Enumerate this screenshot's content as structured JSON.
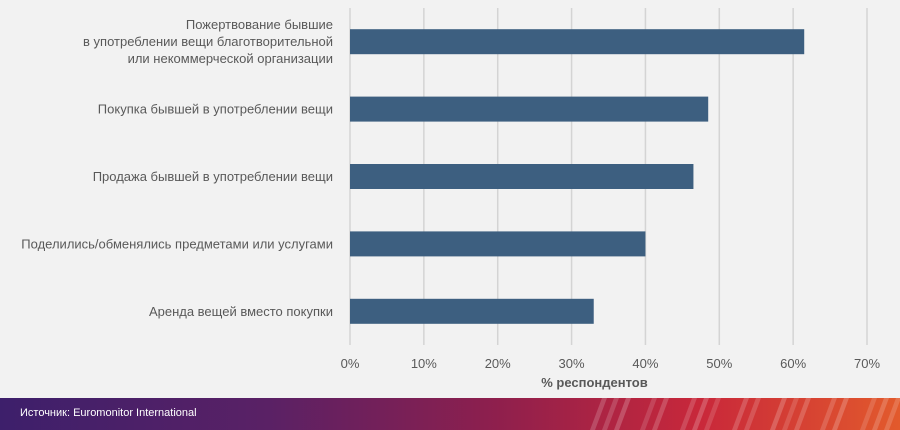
{
  "chart_data": {
    "type": "bar",
    "orientation": "horizontal",
    "categories": [
      [
        "Пожертвование бывшие",
        "в употреблении вещи благотворительной",
        "или некоммерческой организации"
      ],
      [
        "Покупка бывшей в употреблении вещи"
      ],
      [
        "Продажа бывшей в употреблении вещи"
      ],
      [
        "Поделились/обменялись предметами или услугами"
      ],
      [
        "Аренда вещей вместо покупки"
      ]
    ],
    "values": [
      61.5,
      48.5,
      46.5,
      40,
      33
    ],
    "xlabel": "% респондентов",
    "xlim": [
      0,
      70
    ],
    "xticks": [
      "0%",
      "10%",
      "20%",
      "30%",
      "40%",
      "50%",
      "60%",
      "70%"
    ],
    "grid": true,
    "bar_color": "#3d5f80"
  },
  "footer": {
    "source": "Источник: Euromonitor International"
  }
}
